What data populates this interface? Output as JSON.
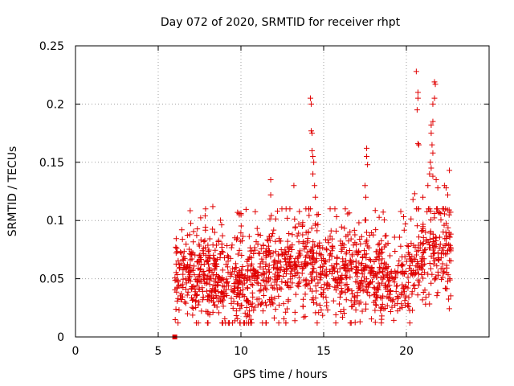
{
  "chart_data": {
    "type": "scatter",
    "title": "Day 072 of 2020, SRMTID for receiver rhpt",
    "xlabel": "GPS time / hours",
    "ylabel": "SRMTID / TECUs",
    "xlim": [
      0,
      25
    ],
    "ylim": [
      0,
      0.25
    ],
    "grid": true,
    "marker": "+",
    "color": "#e00000",
    "x_ticks": [
      0,
      5,
      10,
      15,
      20
    ],
    "x_tick_labels": [
      "0",
      "5",
      "10",
      "15",
      "20"
    ],
    "y_ticks": [
      0,
      0.05,
      0.1,
      0.15,
      0.2,
      0.25
    ],
    "y_tick_labels": [
      "0",
      "0.05",
      "0.1",
      "0.15",
      "0.2",
      "0.25"
    ],
    "generated_series": {
      "x_range": [
        6.0,
        22.7
      ],
      "count": 1500,
      "seed": 20200312,
      "baseline_profile": [
        [
          6.0,
          0.052
        ],
        [
          7.0,
          0.05
        ],
        [
          8.0,
          0.052
        ],
        [
          9.0,
          0.045
        ],
        [
          10.0,
          0.042
        ],
        [
          11.0,
          0.052
        ],
        [
          12.0,
          0.058
        ],
        [
          13.0,
          0.063
        ],
        [
          14.0,
          0.062
        ],
        [
          15.0,
          0.057
        ],
        [
          16.0,
          0.058
        ],
        [
          17.0,
          0.055
        ],
        [
          18.0,
          0.055
        ],
        [
          19.0,
          0.05
        ],
        [
          20.0,
          0.052
        ],
        [
          21.0,
          0.072
        ],
        [
          22.0,
          0.072
        ],
        [
          22.7,
          0.07
        ]
      ],
      "spread": 0.02
    },
    "highlight_points": [
      {
        "x": 14.2,
        "y": 0.205
      },
      {
        "x": 14.25,
        "y": 0.2
      },
      {
        "x": 14.25,
        "y": 0.177
      },
      {
        "x": 14.3,
        "y": 0.175
      },
      {
        "x": 14.3,
        "y": 0.16
      },
      {
        "x": 14.35,
        "y": 0.155
      },
      {
        "x": 14.35,
        "y": 0.14
      },
      {
        "x": 14.4,
        "y": 0.15
      },
      {
        "x": 14.45,
        "y": 0.13
      },
      {
        "x": 14.5,
        "y": 0.12
      },
      {
        "x": 14.1,
        "y": 0.11
      },
      {
        "x": 14.6,
        "y": 0.105
      },
      {
        "x": 17.6,
        "y": 0.162
      },
      {
        "x": 17.6,
        "y": 0.155
      },
      {
        "x": 17.65,
        "y": 0.148
      },
      {
        "x": 17.5,
        "y": 0.13
      },
      {
        "x": 17.55,
        "y": 0.12
      },
      {
        "x": 11.8,
        "y": 0.135
      },
      {
        "x": 11.8,
        "y": 0.122
      },
      {
        "x": 13.2,
        "y": 0.13
      },
      {
        "x": 10.0,
        "y": 0.106
      },
      {
        "x": 9.9,
        "y": 0.105
      },
      {
        "x": 8.3,
        "y": 0.112
      },
      {
        "x": 20.6,
        "y": 0.228
      },
      {
        "x": 20.7,
        "y": 0.21
      },
      {
        "x": 20.7,
        "y": 0.205
      },
      {
        "x": 20.65,
        "y": 0.195
      },
      {
        "x": 20.7,
        "y": 0.166
      },
      {
        "x": 20.75,
        "y": 0.165
      },
      {
        "x": 21.7,
        "y": 0.219
      },
      {
        "x": 21.75,
        "y": 0.217
      },
      {
        "x": 21.7,
        "y": 0.205
      },
      {
        "x": 21.6,
        "y": 0.2
      },
      {
        "x": 21.5,
        "y": 0.182
      },
      {
        "x": 21.6,
        "y": 0.185
      },
      {
        "x": 21.5,
        "y": 0.175
      },
      {
        "x": 21.55,
        "y": 0.165
      },
      {
        "x": 21.6,
        "y": 0.158
      },
      {
        "x": 21.45,
        "y": 0.15
      },
      {
        "x": 21.5,
        "y": 0.145
      },
      {
        "x": 21.4,
        "y": 0.14
      },
      {
        "x": 21.6,
        "y": 0.138
      },
      {
        "x": 21.3,
        "y": 0.13
      },
      {
        "x": 21.8,
        "y": 0.135
      },
      {
        "x": 21.9,
        "y": 0.128
      },
      {
        "x": 20.5,
        "y": 0.123
      },
      {
        "x": 20.4,
        "y": 0.118
      },
      {
        "x": 21.0,
        "y": 0.12
      },
      {
        "x": 22.6,
        "y": 0.143
      },
      {
        "x": 22.3,
        "y": 0.13
      },
      {
        "x": 22.4,
        "y": 0.128
      },
      {
        "x": 22.5,
        "y": 0.122
      },
      {
        "x": 11.3,
        "y": 0.012
      },
      {
        "x": 10.6,
        "y": 0.015
      },
      {
        "x": 17.2,
        "y": 0.013
      },
      {
        "x": 6.6,
        "y": 0.03
      },
      {
        "x": 6.2,
        "y": 0.033
      },
      {
        "x": 10.5,
        "y": 0.018
      }
    ],
    "square_marker": {
      "x": 6.0,
      "y": 0.0
    }
  }
}
